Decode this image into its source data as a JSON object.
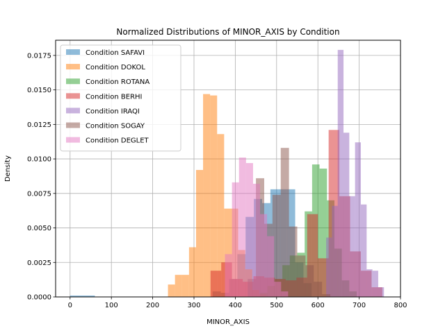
{
  "chart_data": {
    "type": "histogram",
    "title": "Normalized Distributions of MINOR_AXIS by Condition",
    "xlabel": "MINOR_AXIS",
    "ylabel": "Density",
    "xlim": [
      -35,
      800
    ],
    "ylim": [
      0,
      0.0186
    ],
    "xticks": [
      0,
      100,
      200,
      300,
      400,
      500,
      600,
      700,
      800
    ],
    "yticks": [
      0.0,
      0.0025,
      0.005,
      0.0075,
      0.01,
      0.0125,
      0.015,
      0.0175
    ],
    "ytick_labels": [
      "0.0000",
      "0.0025",
      "0.0050",
      "0.0075",
      "0.0100",
      "0.0125",
      "0.0150",
      "0.0175"
    ],
    "grid": true,
    "legend_position": "upper-left",
    "series": [
      {
        "name": "Condition SAFAVI",
        "color": "#1f77b4",
        "bins": [
          [
            0,
            60,
            0.0001
          ],
          [
            345,
            365,
            0.0004
          ],
          [
            365,
            385,
            0.0003
          ],
          [
            385,
            405,
            0.0013
          ],
          [
            405,
            425,
            0.0031
          ],
          [
            425,
            445,
            0.0058
          ],
          [
            445,
            465,
            0.0071
          ],
          [
            465,
            485,
            0.0068
          ],
          [
            485,
            505,
            0.0078
          ],
          [
            505,
            525,
            0.0078
          ],
          [
            525,
            545,
            0.0078
          ],
          [
            545,
            565,
            0.0025
          ],
          [
            565,
            585,
            0.001
          ]
        ]
      },
      {
        "name": "Condition DOKOL",
        "color": "#ff7f0e",
        "bins": [
          [
            237,
            254,
            0.0009
          ],
          [
            254,
            271,
            0.0016
          ],
          [
            271,
            288,
            0.0016
          ],
          [
            288,
            305,
            0.0036
          ],
          [
            305,
            322,
            0.0092
          ],
          [
            322,
            339,
            0.0147
          ],
          [
            339,
            356,
            0.0146
          ],
          [
            356,
            373,
            0.0118
          ],
          [
            373,
            390,
            0.0064
          ],
          [
            390,
            407,
            0.0064
          ],
          [
            407,
            424,
            0.0034
          ],
          [
            424,
            441,
            0.002
          ],
          [
            441,
            458,
            0.0005
          ],
          [
            458,
            475,
            0.0002
          ]
        ]
      },
      {
        "name": "Condition ROTANA",
        "color": "#2ca02c",
        "bins": [
          [
            460,
            478,
            0.0003
          ],
          [
            478,
            496,
            0.0008
          ],
          [
            496,
            514,
            0.0013
          ],
          [
            514,
            532,
            0.0023
          ],
          [
            532,
            550,
            0.003
          ],
          [
            550,
            568,
            0.0032
          ],
          [
            568,
            586,
            0.0062
          ],
          [
            586,
            604,
            0.0096
          ],
          [
            604,
            622,
            0.0093
          ],
          [
            622,
            640,
            0.007
          ],
          [
            640,
            658,
            0.0035
          ],
          [
            658,
            676,
            0.0012
          ],
          [
            676,
            694,
            0.0004
          ]
        ]
      },
      {
        "name": "Condition BERHI",
        "color": "#d62728",
        "bins": [
          [
            340,
            366,
            0.0019
          ],
          [
            366,
            392,
            0.0025
          ],
          [
            392,
            418,
            0.0013
          ],
          [
            418,
            444,
            0.0011
          ],
          [
            444,
            470,
            0.0015
          ],
          [
            470,
            496,
            0.0014
          ],
          [
            496,
            522,
            0.0013
          ],
          [
            522,
            548,
            0.0012
          ],
          [
            548,
            574,
            0.0014
          ],
          [
            574,
            600,
            0.006
          ],
          [
            600,
            626,
            0.0028
          ],
          [
            626,
            652,
            0.0121
          ],
          [
            652,
            678,
            0.0073
          ],
          [
            678,
            704,
            0.0033
          ],
          [
            704,
            730,
            0.0019
          ],
          [
            730,
            756,
            0.0007
          ]
        ]
      },
      {
        "name": "Condition IRAQI",
        "color": "#9467bd",
        "bins": [
          [
            620,
            634,
            0.0043
          ],
          [
            634,
            648,
            0.0066
          ],
          [
            648,
            662,
            0.0179
          ],
          [
            662,
            676,
            0.0119
          ],
          [
            676,
            690,
            0.0073
          ],
          [
            690,
            704,
            0.0112
          ],
          [
            704,
            718,
            0.0067
          ],
          [
            718,
            732,
            0.002
          ],
          [
            732,
            746,
            0.0019
          ],
          [
            746,
            760,
            0.0007
          ]
        ]
      },
      {
        "name": "Condition SOGAY",
        "color": "#8c564b",
        "bins": [
          [
            430,
            450,
            0.0013
          ],
          [
            450,
            470,
            0.0086
          ],
          [
            470,
            490,
            0.0053
          ],
          [
            490,
            510,
            0.0074
          ],
          [
            510,
            530,
            0.0108
          ],
          [
            530,
            550,
            0.0051
          ],
          [
            550,
            570,
            0.003
          ],
          [
            570,
            590,
            0.0023
          ],
          [
            590,
            610,
            0.0011
          ],
          [
            610,
            630,
            0.0002
          ]
        ]
      },
      {
        "name": "Condition DEGLET",
        "color": "#e377c2",
        "bins": [
          [
            375,
            392,
            0.0031
          ],
          [
            392,
            409,
            0.0083
          ],
          [
            409,
            426,
            0.0101
          ],
          [
            426,
            443,
            0.0097
          ],
          [
            443,
            460,
            0.0082
          ],
          [
            460,
            477,
            0.006
          ],
          [
            477,
            494,
            0.0044
          ],
          [
            494,
            511,
            0.0011
          ],
          [
            511,
            528,
            0.0004
          ]
        ]
      }
    ]
  }
}
